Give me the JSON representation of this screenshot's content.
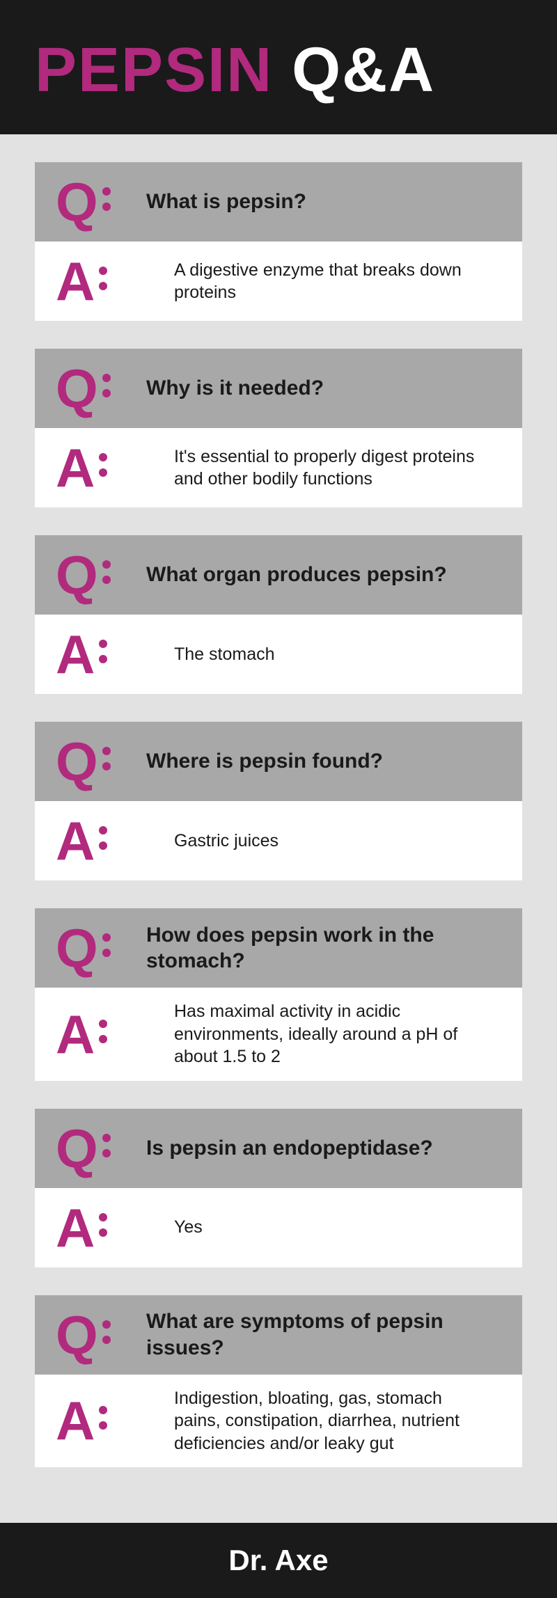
{
  "header": {
    "word1": "PEPSIN",
    "word2": "Q&A"
  },
  "colors": {
    "accent": "#b12a7d",
    "header_bg": "#1a1a1a",
    "body_bg": "#e2e2e2",
    "q_bg": "#a8a8a8",
    "a_bg": "#ffffff",
    "text": "#1a1a1a"
  },
  "labels": {
    "q": "Q",
    "a": "A"
  },
  "qa": [
    {
      "question": "What is pepsin?",
      "answer": "A digestive enzyme that breaks down proteins"
    },
    {
      "question": "Why is it needed?",
      "answer": "It's essential to properly digest proteins and other bodily functions"
    },
    {
      "question": "What organ produces pepsin?",
      "answer": "The stomach"
    },
    {
      "question": "Where is pepsin found?",
      "answer": "Gastric juices"
    },
    {
      "question": "How does pepsin work in the stomach?",
      "answer": "Has maximal activity in acidic environments, ideally around a pH of about 1.5 to 2"
    },
    {
      "question": "Is pepsin an endopeptidase?",
      "answer": "Yes"
    },
    {
      "question": "What are symptoms of pepsin issues?",
      "answer": "Indigestion, bloating, gas, stomach pains, constipation, diarrhea, nutrient deficiencies and/or leaky gut"
    }
  ],
  "footer": {
    "text": "Dr. Axe"
  }
}
